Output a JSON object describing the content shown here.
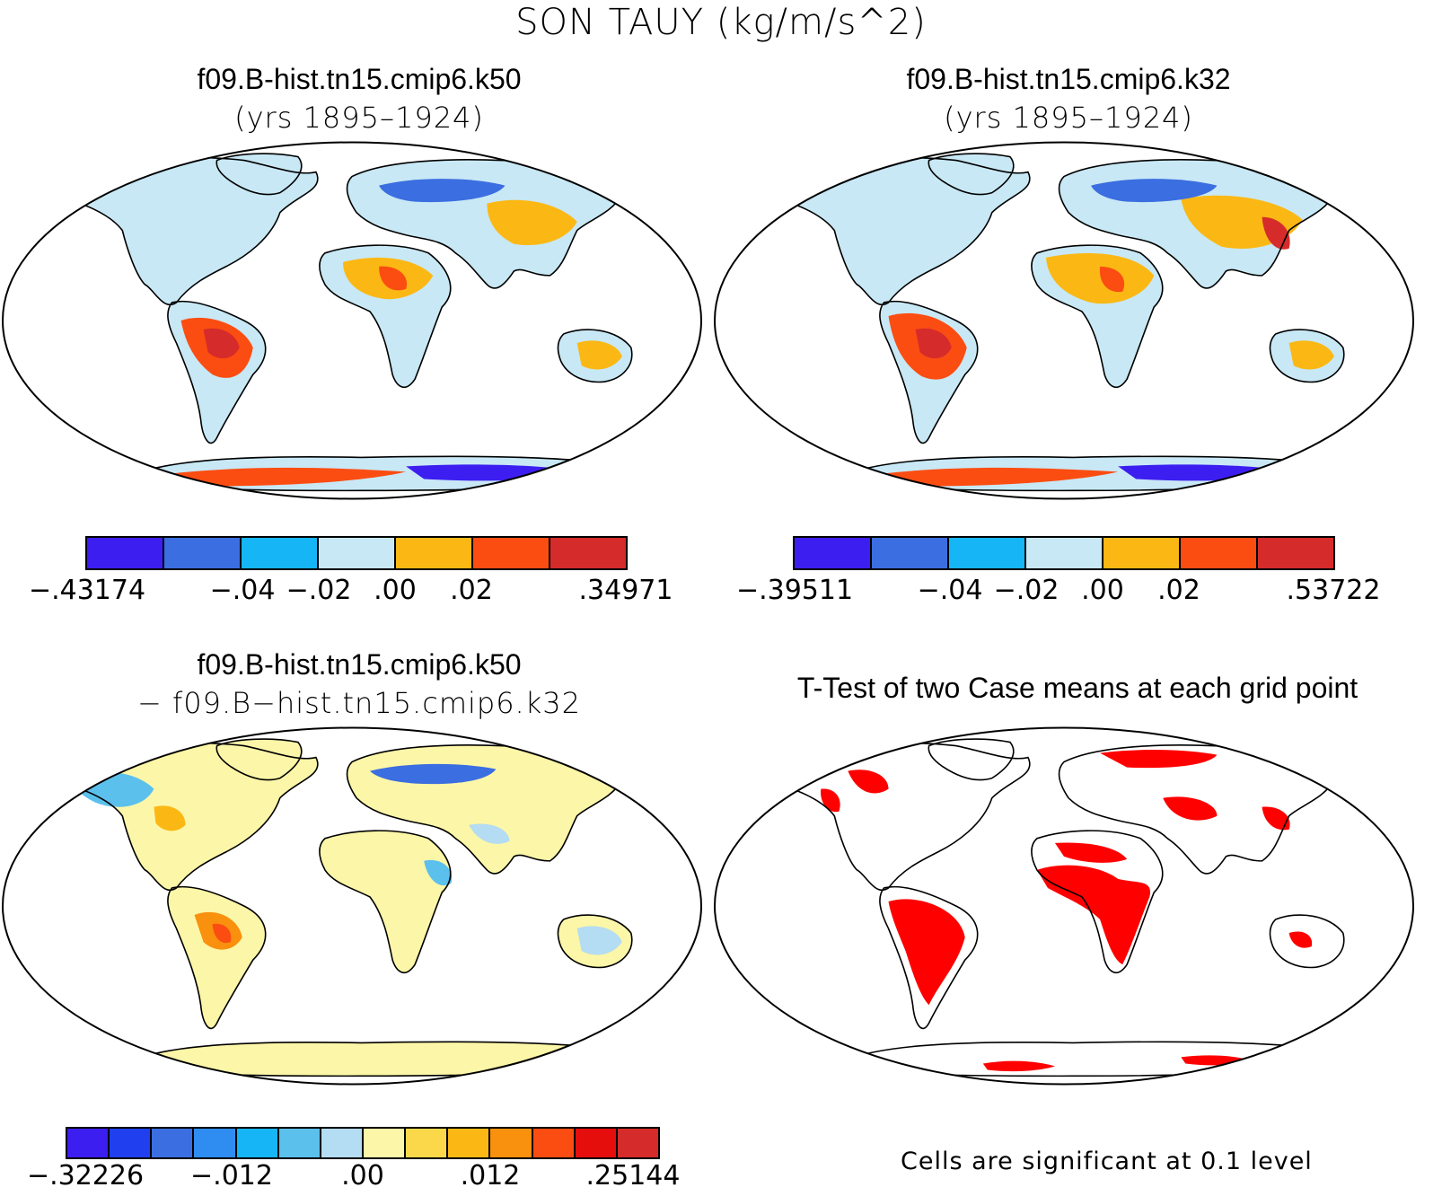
{
  "title": "SON TAUY (kg/m/s^2)",
  "panels": {
    "top_left": {
      "title": "f09.B-hist.tn15.cmip6.k50",
      "subtitle": "(yrs 1895–1924)",
      "colorbar": {
        "colors": [
          "#3d1ef0",
          "#3b6ee0",
          "#16b5f5",
          "#c8e8f5",
          "#fbb814",
          "#fb4d12",
          "#d62b2b"
        ],
        "labels": [
          "−.43174",
          "−.04",
          "−.02",
          ".00",
          ".02",
          ".34971"
        ]
      }
    },
    "top_right": {
      "title": "f09.B-hist.tn15.cmip6.k32",
      "subtitle": "(yrs 1895–1924)",
      "colorbar": {
        "colors": [
          "#3d1ef0",
          "#3b6ee0",
          "#16b5f5",
          "#c8e8f5",
          "#fbb814",
          "#fb4d12",
          "#d62b2b"
        ],
        "labels": [
          "−.39511",
          "−.04",
          "−.02",
          ".00",
          ".02",
          ".53722"
        ]
      }
    },
    "bottom_left": {
      "title": "f09.B-hist.tn15.cmip6.k50",
      "subtitle": "− f09.B−hist.tn15.cmip6.k32",
      "colorbar": {
        "colors": [
          "#3d1ef0",
          "#2040f0",
          "#3b6ee0",
          "#2f8cf0",
          "#16b5f5",
          "#5cc0ec",
          "#b4dcf2",
          "#fcf6a8",
          "#fad84a",
          "#fbb814",
          "#f9900e",
          "#fb4d12",
          "#e60d0d",
          "#d62b2b"
        ],
        "labels": [
          "−.32226",
          "−.012",
          ".00",
          ".012",
          ".25144"
        ]
      }
    },
    "bottom_right": {
      "title": "T-Test of two Case means at each grid point",
      "note": "Cells are significant at 0.1 level",
      "fill_color": "#ff0000"
    }
  }
}
